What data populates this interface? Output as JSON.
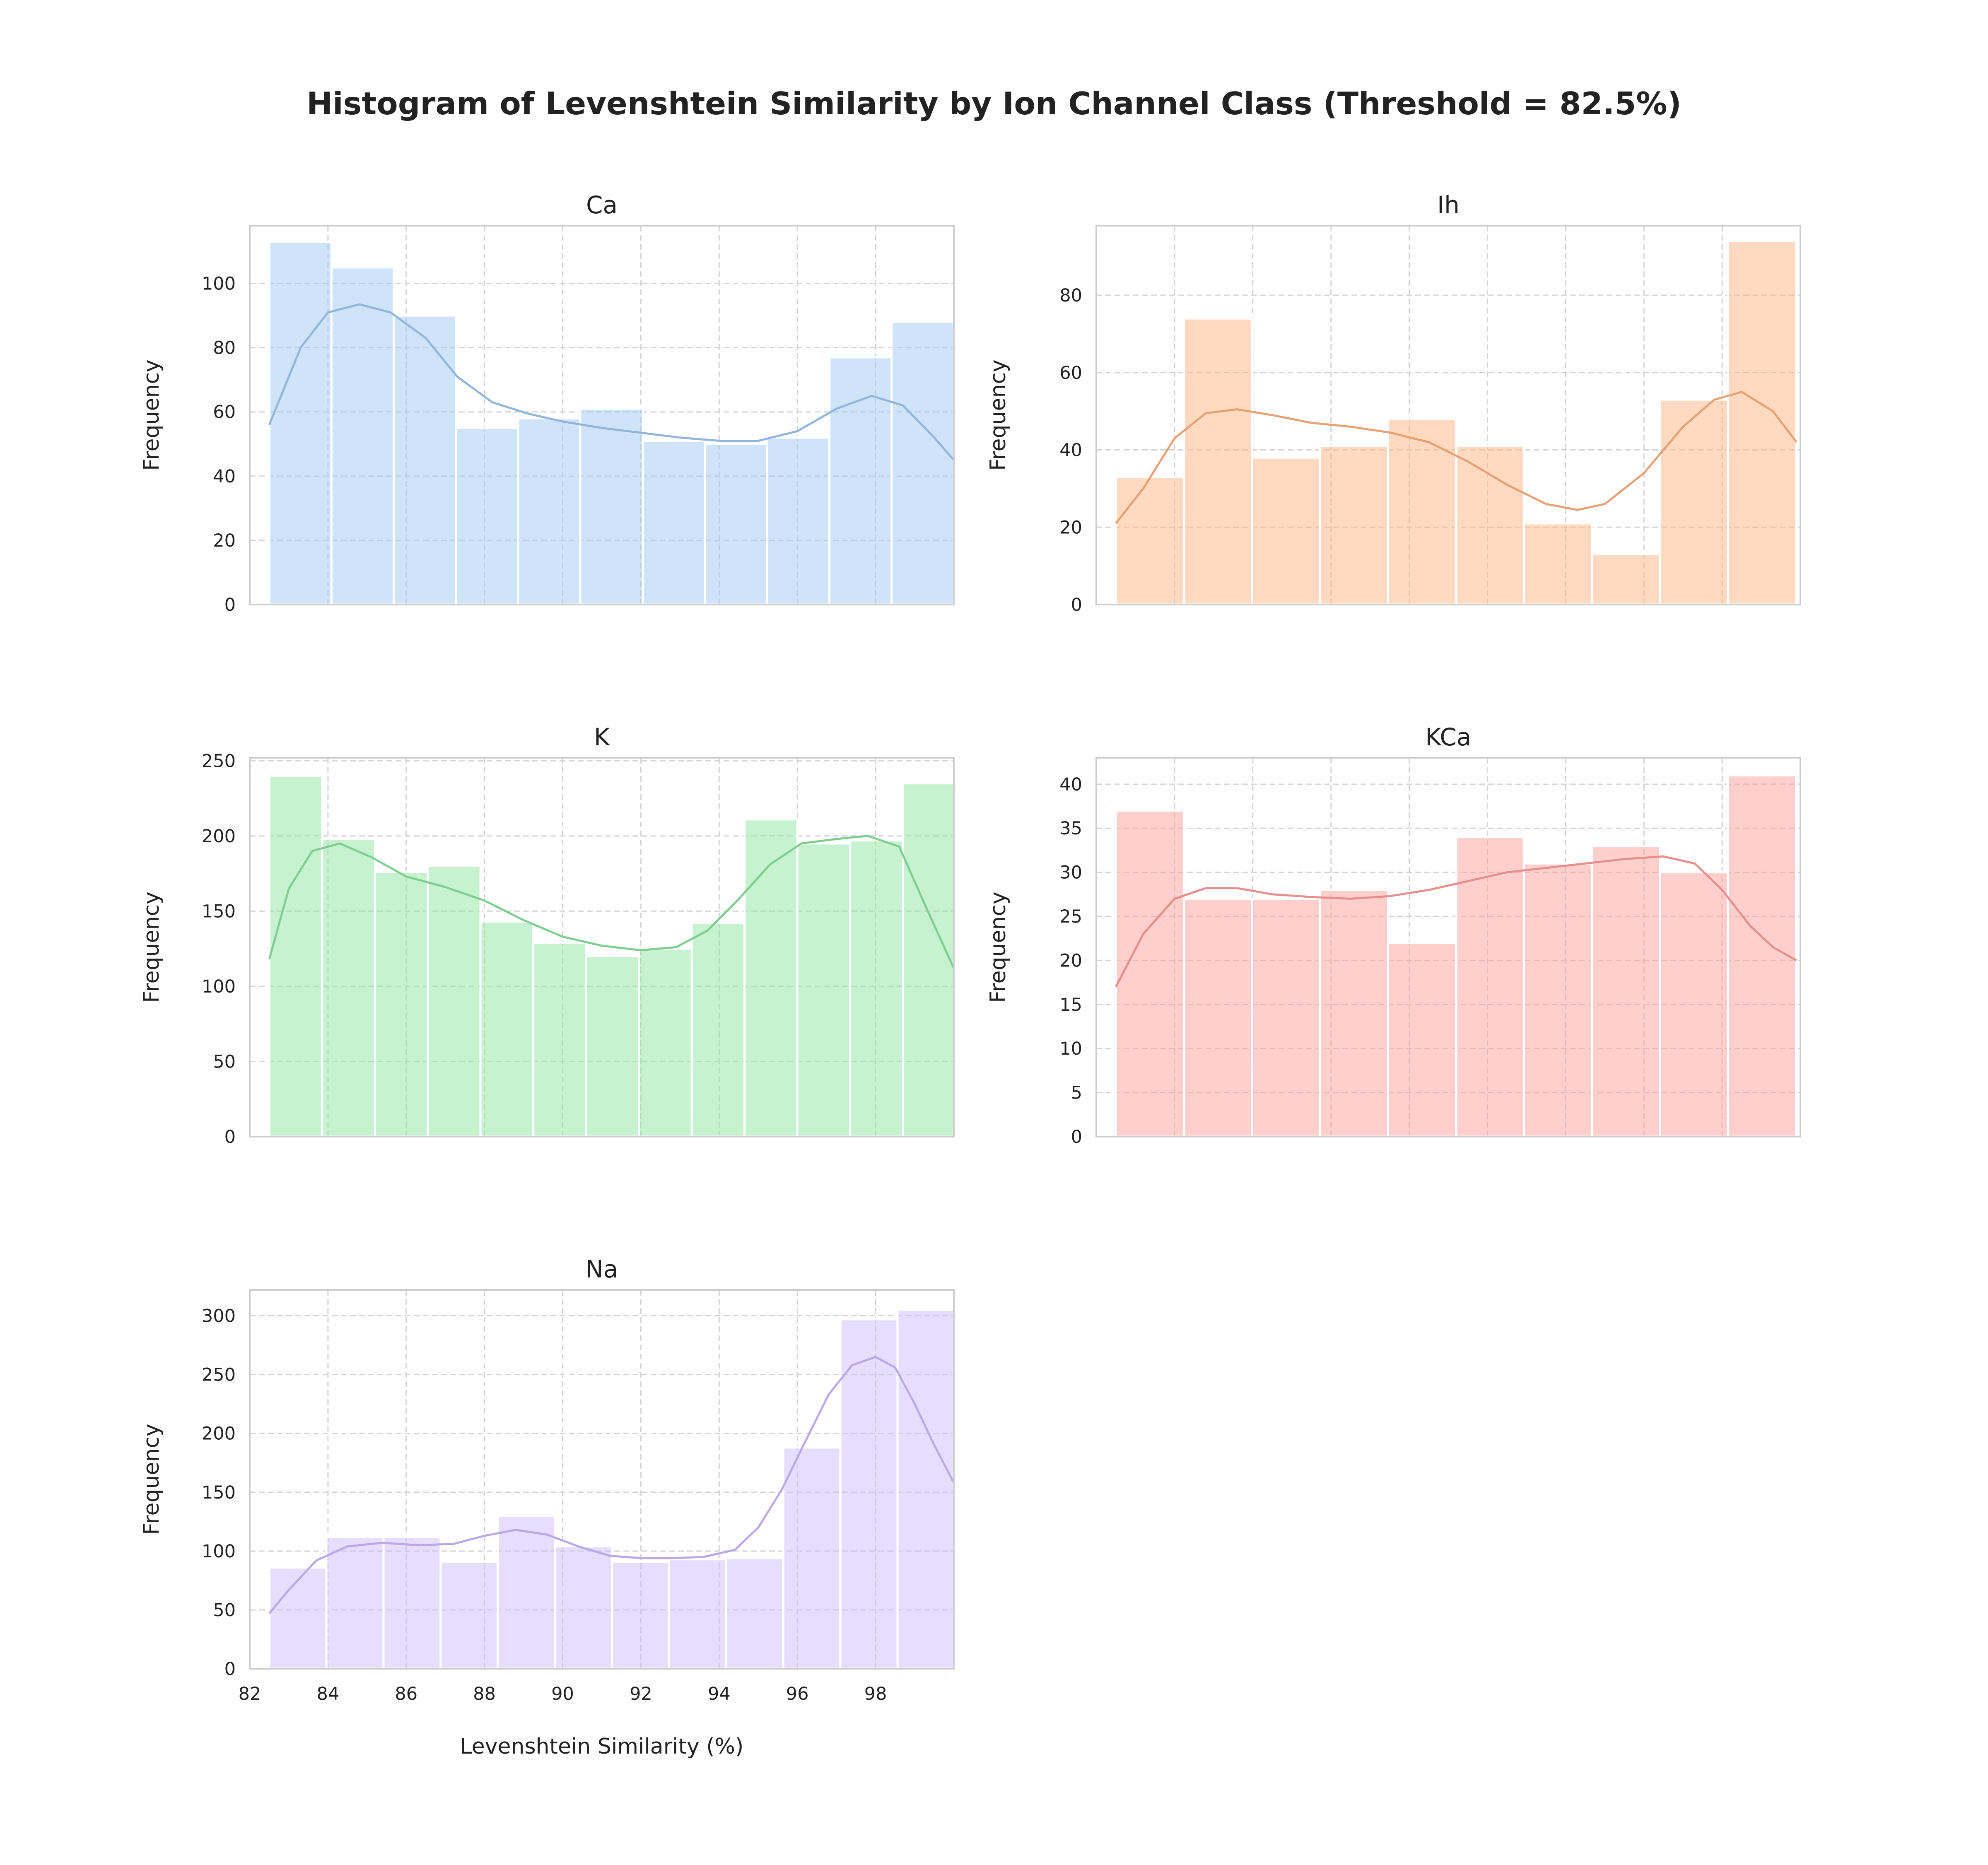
{
  "title": "Histogram of Levenshtein Similarity by Ion Channel Class (Threshold = 82.5%)",
  "ylabel": "Frequency",
  "xlabel": "Levenshtein Similarity (%)",
  "xticks": [
    "82",
    "84",
    "86",
    "88",
    "90",
    "92",
    "94",
    "96",
    "98"
  ],
  "chart_data": [
    {
      "type": "bar",
      "title": "Ca",
      "color": "#a1c9f4",
      "xlim": [
        82,
        100
      ],
      "ylim": [
        0,
        118
      ],
      "yticks": [
        0,
        20,
        40,
        60,
        80,
        100
      ],
      "bin_edges": [
        82.5,
        84.09,
        85.68,
        87.27,
        88.86,
        90.45,
        92.05,
        93.64,
        95.23,
        96.82,
        98.41,
        100
      ],
      "values": [
        113,
        105,
        90,
        55,
        58,
        61,
        51,
        50,
        52,
        77,
        88
      ],
      "kde": [
        [
          82.5,
          56
        ],
        [
          83.3,
          80
        ],
        [
          84,
          91
        ],
        [
          84.8,
          93.5
        ],
        [
          85.6,
          91
        ],
        [
          86.5,
          83
        ],
        [
          87.3,
          71
        ],
        [
          88.2,
          63
        ],
        [
          89.1,
          59.5
        ],
        [
          90,
          57
        ],
        [
          91,
          55
        ],
        [
          92,
          53.5
        ],
        [
          93,
          52
        ],
        [
          94,
          51
        ],
        [
          95,
          51
        ],
        [
          96,
          54
        ],
        [
          97,
          61
        ],
        [
          97.9,
          65
        ],
        [
          98.7,
          62
        ],
        [
          99.5,
          52
        ],
        [
          100,
          45
        ]
      ]
    },
    {
      "type": "bar",
      "title": "Ih",
      "color": "#ffb482",
      "xlim": [
        82,
        100
      ],
      "ylim": [
        0,
        98
      ],
      "yticks": [
        0,
        20,
        40,
        60,
        80
      ],
      "bin_edges": [
        82.5,
        84.24,
        85.98,
        87.72,
        89.46,
        91.2,
        92.93,
        94.67,
        96.41,
        98.15,
        99.89
      ],
      "values": [
        33,
        74,
        38,
        41,
        48,
        41,
        21,
        13,
        53,
        94
      ],
      "kde": [
        [
          82.5,
          21
        ],
        [
          83.2,
          30
        ],
        [
          84,
          43
        ],
        [
          84.8,
          49.5
        ],
        [
          85.6,
          50.5
        ],
        [
          86.5,
          49
        ],
        [
          87.5,
          47
        ],
        [
          88.5,
          46
        ],
        [
          89.5,
          44.5
        ],
        [
          90.5,
          42
        ],
        [
          91.5,
          37
        ],
        [
          92.5,
          31
        ],
        [
          93.5,
          26
        ],
        [
          94.3,
          24.5
        ],
        [
          95,
          26
        ],
        [
          96,
          34
        ],
        [
          97,
          46
        ],
        [
          97.8,
          53
        ],
        [
          98.5,
          55
        ],
        [
          99.3,
          50
        ],
        [
          99.9,
          42
        ]
      ]
    },
    {
      "type": "bar",
      "title": "K",
      "color": "#8de5a1",
      "xlim": [
        82,
        100
      ],
      "ylim": [
        0,
        252
      ],
      "yticks": [
        0,
        50,
        100,
        150,
        200,
        250
      ],
      "bin_edges": [
        82.5,
        83.85,
        85.2,
        86.55,
        87.9,
        89.25,
        90.6,
        91.95,
        93.3,
        94.65,
        96.0,
        97.35,
        98.7,
        100
      ],
      "values": [
        240,
        198,
        176,
        180,
        143,
        129,
        120,
        125,
        142,
        211,
        195,
        197,
        235
      ],
      "kde": [
        [
          82.5,
          118
        ],
        [
          83,
          165
        ],
        [
          83.6,
          190
        ],
        [
          84.3,
          195
        ],
        [
          85.1,
          186
        ],
        [
          86,
          173
        ],
        [
          87,
          166
        ],
        [
          88,
          157
        ],
        [
          89,
          144
        ],
        [
          90,
          133
        ],
        [
          91,
          127
        ],
        [
          92,
          124
        ],
        [
          92.9,
          126
        ],
        [
          93.7,
          137
        ],
        [
          94.5,
          158
        ],
        [
          95.3,
          181
        ],
        [
          96.1,
          195
        ],
        [
          97,
          198
        ],
        [
          97.8,
          200
        ],
        [
          98.6,
          193
        ],
        [
          99.3,
          152
        ],
        [
          100,
          112
        ]
      ]
    },
    {
      "type": "bar",
      "title": "KCa",
      "color": "#ff9f9b",
      "xlim": [
        82,
        100
      ],
      "ylim": [
        0,
        43
      ],
      "yticks": [
        0,
        5,
        10,
        15,
        20,
        25,
        30,
        35,
        40
      ],
      "bin_edges": [
        82.5,
        84.24,
        85.98,
        87.72,
        89.46,
        91.2,
        92.93,
        94.67,
        96.41,
        98.15,
        99.89
      ],
      "values": [
        37,
        27,
        27,
        28,
        22,
        34,
        31,
        33,
        30,
        41
      ],
      "kde": [
        [
          82.5,
          17
        ],
        [
          83.2,
          23
        ],
        [
          84,
          27
        ],
        [
          84.8,
          28.2
        ],
        [
          85.6,
          28.2
        ],
        [
          86.5,
          27.5
        ],
        [
          87.5,
          27.2
        ],
        [
          88.5,
          27
        ],
        [
          89.5,
          27.3
        ],
        [
          90.5,
          28
        ],
        [
          91.5,
          29
        ],
        [
          92.5,
          30
        ],
        [
          93.5,
          30.5
        ],
        [
          94.5,
          31
        ],
        [
          95.5,
          31.5
        ],
        [
          96.5,
          31.8
        ],
        [
          97.3,
          31
        ],
        [
          98,
          28
        ],
        [
          98.7,
          24
        ],
        [
          99.3,
          21.5
        ],
        [
          99.9,
          20
        ]
      ]
    },
    {
      "type": "bar",
      "title": "Na",
      "color": "#d0bbff",
      "xlim": [
        82,
        100
      ],
      "ylim": [
        0,
        322
      ],
      "yticks": [
        0,
        50,
        100,
        150,
        200,
        250,
        300
      ],
      "bin_edges": [
        82.5,
        83.96,
        85.42,
        86.88,
        88.34,
        89.8,
        91.26,
        92.72,
        94.18,
        95.64,
        97.1,
        98.56,
        100
      ],
      "values": [
        86,
        112,
        112,
        91,
        130,
        104,
        91,
        93,
        94,
        188,
        297,
        305
      ],
      "kde": [
        [
          82.5,
          47
        ],
        [
          83,
          67
        ],
        [
          83.7,
          92
        ],
        [
          84.5,
          104
        ],
        [
          85.4,
          107
        ],
        [
          86.3,
          105
        ],
        [
          87.2,
          106
        ],
        [
          88,
          113
        ],
        [
          88.8,
          118
        ],
        [
          89.6,
          114
        ],
        [
          90.4,
          104
        ],
        [
          91.2,
          96
        ],
        [
          92,
          94
        ],
        [
          92.8,
          94
        ],
        [
          93.6,
          95
        ],
        [
          94.4,
          101
        ],
        [
          95,
          120
        ],
        [
          95.6,
          152
        ],
        [
          96.2,
          193
        ],
        [
          96.8,
          233
        ],
        [
          97.4,
          258
        ],
        [
          98,
          265
        ],
        [
          98.5,
          256
        ],
        [
          99,
          225
        ],
        [
          99.5,
          190
        ],
        [
          100,
          158
        ]
      ]
    }
  ]
}
